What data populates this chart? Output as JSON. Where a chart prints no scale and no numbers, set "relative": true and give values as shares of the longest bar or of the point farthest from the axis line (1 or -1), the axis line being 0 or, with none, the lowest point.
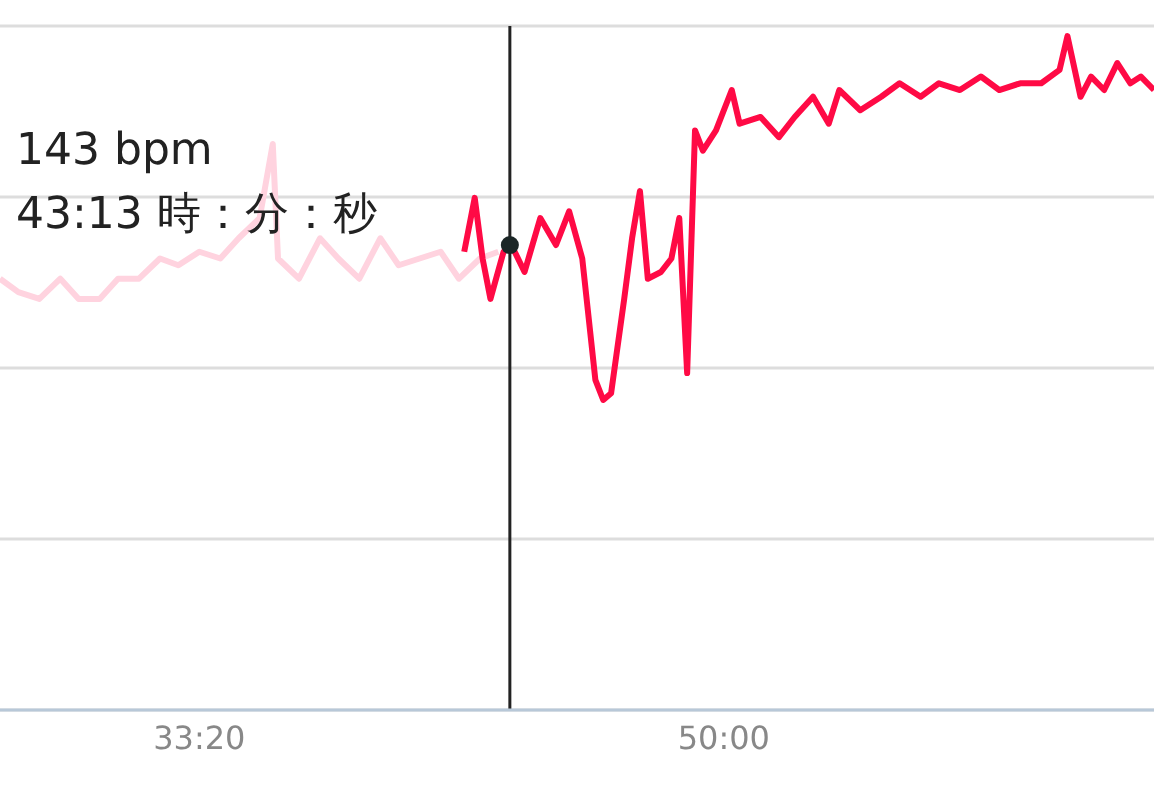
{
  "chart_data": {
    "type": "line",
    "relative": true,
    "grid": "y",
    "marker": "none",
    "line_style": "solid",
    "xlim": [
      1620,
      3820
    ],
    "xticks": [
      {
        "value": 2000,
        "label": "33:20"
      },
      {
        "value": 3000,
        "label": "50:00"
      }
    ],
    "annotations": [
      "143 bpm",
      "43:13 時：分：秒"
    ],
    "ref_lines": [
      {
        "axis": "x",
        "value": 2592,
        "color": "#222222"
      }
    ],
    "series": [
      {
        "color": "#ffd3df",
        "x": [
          1620,
          1655,
          1695,
          1735,
          1770,
          1810,
          1845,
          1885,
          1925,
          1960,
          2000,
          2040,
          2075,
          2115,
          2140,
          2150,
          2190,
          2230,
          2265,
          2305,
          2345,
          2380,
          2420,
          2460,
          2495,
          2535,
          2570
        ],
        "values": [
          0.64,
          0.62,
          0.61,
          0.64,
          0.61,
          0.61,
          0.64,
          0.64,
          0.67,
          0.66,
          0.68,
          0.67,
          0.7,
          0.73,
          0.84,
          0.67,
          0.64,
          0.7,
          0.67,
          0.64,
          0.7,
          0.66,
          0.67,
          0.68,
          0.64,
          0.67,
          0.68
        ]
      },
      {
        "color": "#ff0a45",
        "x": [
          2505,
          2525,
          2540,
          2555,
          2580,
          2595,
          2620,
          2650,
          2680,
          2705,
          2730,
          2755,
          2770,
          2785,
          2810,
          2825,
          2840,
          2855,
          2880,
          2900,
          2915,
          2930,
          2945,
          2960,
          2985,
          3015,
          3030,
          3070,
          3105,
          3135,
          3170,
          3200,
          3220,
          3260,
          3300,
          3335,
          3375,
          3410,
          3450,
          3490,
          3525,
          3565,
          3605,
          3640,
          3655,
          3680,
          3700,
          3725,
          3750,
          3775,
          3795,
          3820
        ],
        "values": [
          0.68,
          0.76,
          0.67,
          0.61,
          0.68,
          0.69,
          0.65,
          0.73,
          0.69,
          0.74,
          0.67,
          0.49,
          0.46,
          0.47,
          0.61,
          0.7,
          0.77,
          0.64,
          0.65,
          0.67,
          0.73,
          0.5,
          0.86,
          0.83,
          0.86,
          0.92,
          0.87,
          0.88,
          0.85,
          0.88,
          0.91,
          0.87,
          0.92,
          0.89,
          0.91,
          0.93,
          0.91,
          0.93,
          0.92,
          0.94,
          0.92,
          0.93,
          0.93,
          0.95,
          1,
          0.91,
          0.94,
          0.92,
          0.96,
          0.93,
          0.94,
          0.92
        ]
      },
      {
        "type": "scatter",
        "color": "#1b2626",
        "marker": "circle",
        "x": [
          2592
        ],
        "values": [
          0.69
        ]
      }
    ]
  }
}
